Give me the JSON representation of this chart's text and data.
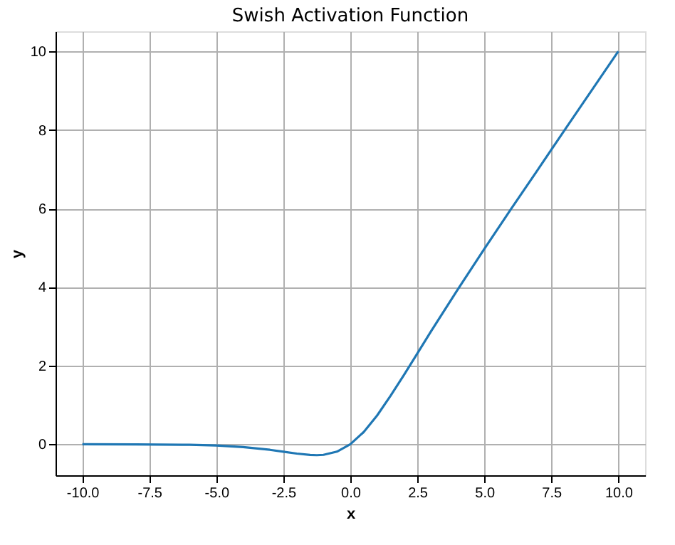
{
  "chart_data": {
    "type": "line",
    "title": "Swish Activation Function",
    "xlabel": "x",
    "ylabel": "y",
    "x": [
      -10,
      -8,
      -6,
      -5,
      -4,
      -3,
      -2.5,
      -2,
      -1.5,
      -1.25,
      -1,
      -0.5,
      0,
      0.5,
      1,
      1.5,
      2,
      2.5,
      3,
      4,
      5,
      6,
      7,
      8,
      9,
      10
    ],
    "series": [
      {
        "color": "#1f77b4",
        "values": [
          0.0,
          -0.003,
          -0.015,
          -0.033,
          -0.072,
          -0.142,
          -0.189,
          -0.238,
          -0.27,
          -0.278,
          -0.269,
          -0.189,
          0.0,
          0.311,
          0.731,
          1.23,
          1.76,
          2.31,
          2.86,
          3.93,
          4.97,
          5.99,
          6.99,
          8.0,
          9.0,
          10.0
        ]
      }
    ],
    "xlim": [
      -11,
      11
    ],
    "ylim": [
      -0.79,
      10.51
    ],
    "xticks": [
      {
        "value": -10,
        "label": "-10.0"
      },
      {
        "value": -7.5,
        "label": "-7.5"
      },
      {
        "value": -5,
        "label": "-5.0"
      },
      {
        "value": -2.5,
        "label": "-2.5"
      },
      {
        "value": 0,
        "label": "0.0"
      },
      {
        "value": 2.5,
        "label": "2.5"
      },
      {
        "value": 5,
        "label": "5.0"
      },
      {
        "value": 7.5,
        "label": "7.5"
      },
      {
        "value": 10,
        "label": "10.0"
      }
    ],
    "yticks": [
      0,
      2,
      4,
      6,
      8,
      10
    ],
    "grid": true,
    "line_style": "solid"
  }
}
